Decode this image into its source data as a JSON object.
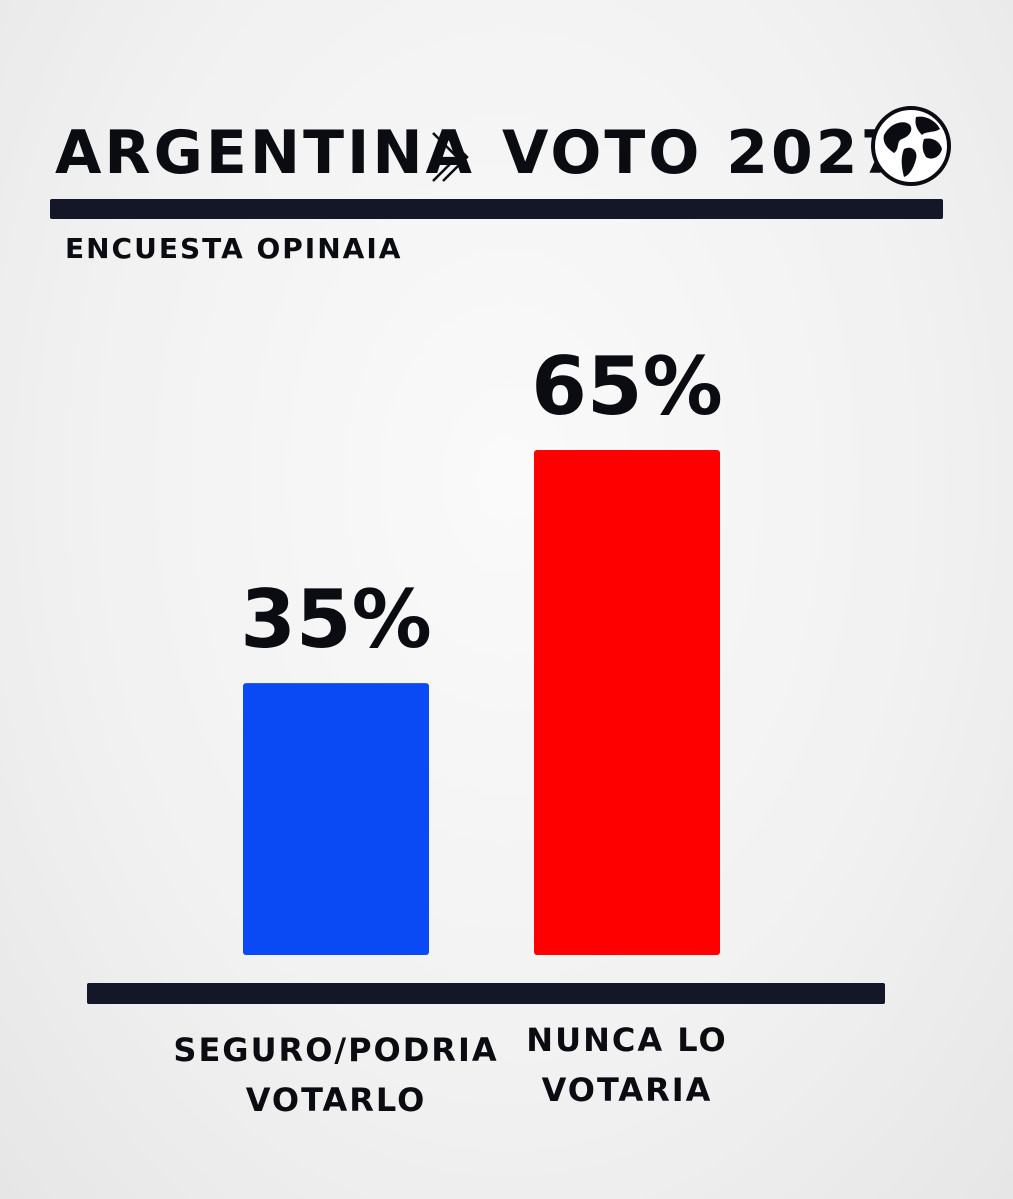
{
  "header": {
    "title_left": "ARGENTINA",
    "title_right": "VOTO 2027",
    "separator_icon": "double-chevron-right-icon",
    "globe_icon": "globe-icon",
    "subtitle": "ENCUESTA OPINAIA"
  },
  "chart_data": {
    "type": "bar",
    "title": "ARGENTINA 》 VOTO 2027",
    "subtitle": "ENCUESTA OPINAIA",
    "categories": [
      "SEGURO/PODRIA VOTARLO",
      "NUNCA LO VOTARIA"
    ],
    "category_lines": [
      [
        "SEGURO/PODRIA",
        "VOTARLO"
      ],
      [
        "NUNCA LO",
        "VOTARIA"
      ]
    ],
    "values": [
      35,
      65
    ],
    "data_labels": [
      "35%",
      "65%"
    ],
    "colors": [
      "#0a4af5",
      "#ff0000"
    ],
    "ylim": [
      0,
      65
    ],
    "grid": false,
    "legend": "none"
  }
}
